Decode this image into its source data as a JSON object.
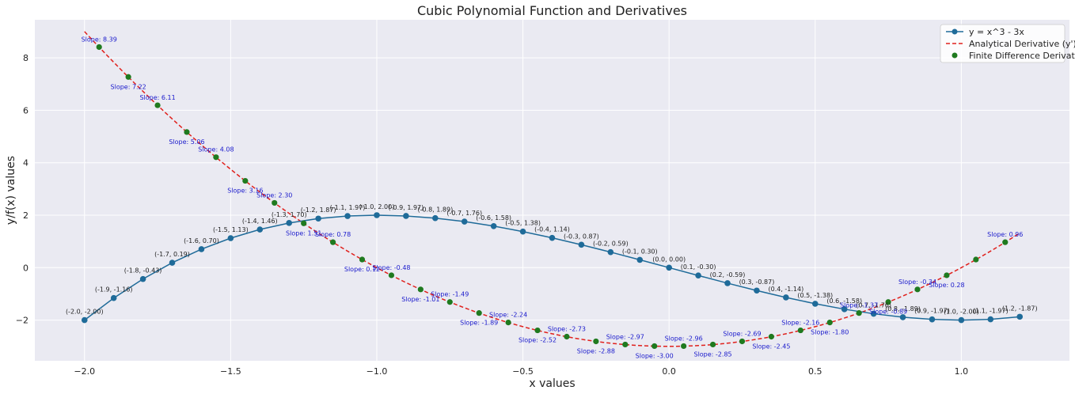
{
  "chart_data": {
    "type": "line",
    "title": "Cubic Polynomial Function and Derivatives",
    "xlabel": "x values",
    "ylabel": "y/f(x) values",
    "xlim": [
      -2.17,
      1.37
    ],
    "ylim": [
      -3.55,
      9.45
    ],
    "x_ticks": [
      -2.0,
      -1.5,
      -1.0,
      -0.5,
      0.0,
      0.5,
      1.0
    ],
    "x_tick_labels": [
      "−2.0",
      "−1.5",
      "−1.0",
      "−0.5",
      "0.0",
      "0.5",
      "1.0"
    ],
    "y_ticks": [
      -2,
      0,
      2,
      4,
      6,
      8
    ],
    "y_tick_labels": [
      "−2",
      "0",
      "2",
      "4",
      "6",
      "8"
    ],
    "grid": true,
    "legend_position": "top-right",
    "colors": {
      "function": "#1f6b99",
      "derivative": "#e0201c",
      "finite_diff": "#1f7a1f",
      "slope_text": "#1a1acc",
      "plot_bg": "#eaeaf2",
      "grid": "#ffffff"
    },
    "legend": [
      {
        "label": "y = x^3 - 3x",
        "style": "line-marker"
      },
      {
        "label": "Analytical Derivative (y')",
        "style": "dashed"
      },
      {
        "label": "Finite Difference Derivative",
        "style": "marker"
      }
    ],
    "function_points": [
      {
        "x": -2.0,
        "y": -2.0,
        "label": "(-2.0, -2.00)"
      },
      {
        "x": -1.9,
        "y": -1.159,
        "label": "(-1.9, -1.16)"
      },
      {
        "x": -1.8,
        "y": -0.432,
        "label": "(-1.8, -0.43)"
      },
      {
        "x": -1.7,
        "y": 0.187,
        "label": "(-1.7, 0.19)"
      },
      {
        "x": -1.6,
        "y": 0.704,
        "label": "(-1.6, 0.70)"
      },
      {
        "x": -1.5,
        "y": 1.125,
        "label": "(-1.5, 1.13)"
      },
      {
        "x": -1.4,
        "y": 1.456,
        "label": "(-1.4, 1.46)"
      },
      {
        "x": -1.3,
        "y": 1.703,
        "label": "(-1.3, 1.70)"
      },
      {
        "x": -1.2,
        "y": 1.872,
        "label": "(-1.2, 1.87)"
      },
      {
        "x": -1.1,
        "y": 1.969,
        "label": "(-1.1, 1.97)"
      },
      {
        "x": -1.0,
        "y": 2.0,
        "label": "(-1.0, 2.00)"
      },
      {
        "x": -0.9,
        "y": 1.971,
        "label": "(-0.9, 1.97)"
      },
      {
        "x": -0.8,
        "y": 1.888,
        "label": "(-0.8, 1.89)"
      },
      {
        "x": -0.7,
        "y": 1.757,
        "label": "(-0.7, 1.76)"
      },
      {
        "x": -0.6,
        "y": 1.584,
        "label": "(-0.6, 1.58)"
      },
      {
        "x": -0.5,
        "y": 1.375,
        "label": "(-0.5, 1.38)"
      },
      {
        "x": -0.4,
        "y": 1.136,
        "label": "(-0.4, 1.14)"
      },
      {
        "x": -0.3,
        "y": 0.873,
        "label": "(-0.3, 0.87)"
      },
      {
        "x": -0.2,
        "y": 0.592,
        "label": "(-0.2, 0.59)"
      },
      {
        "x": -0.1,
        "y": 0.299,
        "label": "(-0.1, 0.30)"
      },
      {
        "x": 0.0,
        "y": 0.0,
        "label": "(0.0, 0.00)"
      },
      {
        "x": 0.1,
        "y": -0.299,
        "label": "(0.1, -0.30)"
      },
      {
        "x": 0.2,
        "y": -0.592,
        "label": "(0.2, -0.59)"
      },
      {
        "x": 0.3,
        "y": -0.873,
        "label": "(0.3, -0.87)"
      },
      {
        "x": 0.4,
        "y": -1.136,
        "label": "(0.4, -1.14)"
      },
      {
        "x": 0.5,
        "y": -1.375,
        "label": "(0.5, -1.38)"
      },
      {
        "x": 0.6,
        "y": -1.584,
        "label": "(0.6, -1.58)"
      },
      {
        "x": 0.7,
        "y": -1.757,
        "label": "(0.7, -1.76)"
      },
      {
        "x": 0.8,
        "y": -1.888,
        "label": "(0.8, -1.89)"
      },
      {
        "x": 0.9,
        "y": -1.971,
        "label": "(0.9, -1.97)"
      },
      {
        "x": 1.0,
        "y": -2.0,
        "label": "(1.0, -2.00)"
      },
      {
        "x": 1.1,
        "y": -1.969,
        "label": "(1.1, -1.97)"
      },
      {
        "x": 1.2,
        "y": -1.872,
        "label": "(1.2, -1.87)"
      }
    ],
    "derivative_points": [
      {
        "x": -1.95,
        "y": 8.41,
        "label": "Slope: 8.39",
        "side": "above"
      },
      {
        "x": -1.85,
        "y": 7.27,
        "label": "Slope: 7.22",
        "side": "below"
      },
      {
        "x": -1.75,
        "y": 6.19,
        "label": "Slope: 6.11",
        "side": "above"
      },
      {
        "x": -1.65,
        "y": 5.17,
        "label": "Slope: 5.06",
        "side": "below"
      },
      {
        "x": -1.55,
        "y": 4.21,
        "label": "Slope: 4.08",
        "side": "above"
      },
      {
        "x": -1.45,
        "y": 3.31,
        "label": "Slope: 3.16",
        "side": "below"
      },
      {
        "x": -1.35,
        "y": 2.47,
        "label": "Slope: 2.30",
        "side": "above"
      },
      {
        "x": -1.25,
        "y": 1.69,
        "label": "Slope: 1.51",
        "side": "below"
      },
      {
        "x": -1.15,
        "y": 0.97,
        "label": "Slope: 0.78",
        "side": "above"
      },
      {
        "x": -1.05,
        "y": 0.31,
        "label": "Slope: 0.12",
        "side": "below"
      },
      {
        "x": -0.95,
        "y": -0.29,
        "label": "Slope: -0.48",
        "side": "above"
      },
      {
        "x": -0.85,
        "y": -0.83,
        "label": "Slope: -1.01",
        "side": "below"
      },
      {
        "x": -0.75,
        "y": -1.31,
        "label": "Slope: -1.49",
        "side": "above"
      },
      {
        "x": -0.65,
        "y": -1.73,
        "label": "Slope: -1.89",
        "side": "below"
      },
      {
        "x": -0.55,
        "y": -2.09,
        "label": "Slope: -2.24",
        "side": "above"
      },
      {
        "x": -0.45,
        "y": -2.39,
        "label": "Slope: -2.52",
        "side": "below"
      },
      {
        "x": -0.35,
        "y": -2.63,
        "label": "Slope: -2.73",
        "side": "above"
      },
      {
        "x": -0.25,
        "y": -2.81,
        "label": "Slope: -2.88",
        "side": "below"
      },
      {
        "x": -0.15,
        "y": -2.93,
        "label": "Slope: -2.97",
        "side": "above"
      },
      {
        "x": -0.05,
        "y": -2.99,
        "label": "Slope: -3.00",
        "side": "below"
      },
      {
        "x": 0.05,
        "y": -2.99,
        "label": "Slope: -2.96",
        "side": "above"
      },
      {
        "x": 0.15,
        "y": -2.93,
        "label": "Slope: -2.85",
        "side": "below"
      },
      {
        "x": 0.25,
        "y": -2.81,
        "label": "Slope: -2.69",
        "side": "above"
      },
      {
        "x": 0.35,
        "y": -2.63,
        "label": "Slope: -2.45",
        "side": "below"
      },
      {
        "x": 0.45,
        "y": -2.39,
        "label": "Slope: -2.16",
        "side": "above"
      },
      {
        "x": 0.55,
        "y": -2.09,
        "label": "Slope: -1.80",
        "side": "below"
      },
      {
        "x": 0.65,
        "y": -1.73,
        "label": "Slope: -1.37",
        "side": "above"
      },
      {
        "x": 0.75,
        "y": -1.31,
        "label": "Slope: -0.89",
        "side": "below"
      },
      {
        "x": 0.85,
        "y": -0.83,
        "label": "Slope: -0.34",
        "side": "above"
      },
      {
        "x": 0.95,
        "y": -0.29,
        "label": "Slope: 0.28",
        "side": "below"
      },
      {
        "x": 1.05,
        "y": 0.31,
        "label": "",
        "side": "above"
      },
      {
        "x": 1.15,
        "y": 0.97,
        "label": "Slope: 0.96",
        "side": "above"
      }
    ]
  }
}
